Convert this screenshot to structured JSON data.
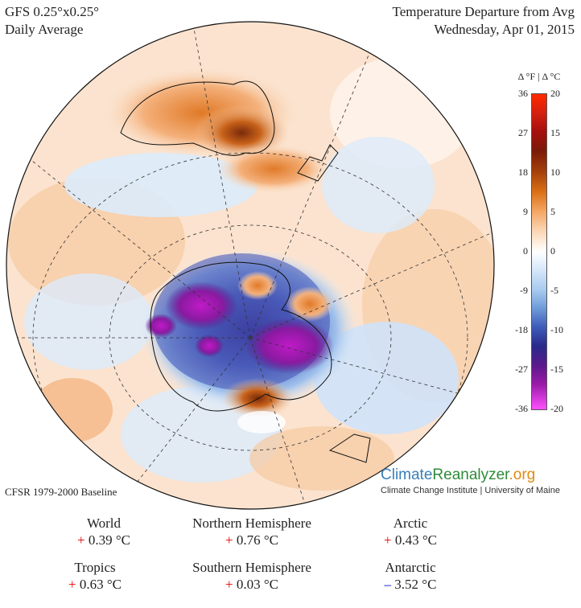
{
  "header": {
    "model": "GFS 0.25°x0.25°",
    "period": "Daily Average",
    "title": "Temperature Departure from Avg",
    "date": "Wednesday, Apr 01, 2015"
  },
  "scale": {
    "units_label": "Δ °F  |  Δ °C",
    "fahrenheit_ticks": [
      "36",
      "27",
      "18",
      "9",
      "0",
      "-9",
      "-18",
      "-27",
      "-36"
    ],
    "celsius_ticks": [
      "20",
      "15",
      "10",
      "5",
      "0",
      "-5",
      "-10",
      "-15",
      "-20"
    ],
    "warm_color": "#ff2a00",
    "cold_color": "#ff50ff"
  },
  "baseline": "CFSR 1979-2000 Baseline",
  "brand": {
    "climate": "Climate",
    "reanalyzer": "Reanalyzer",
    "org": ".org",
    "subtitle": "Climate Change Institute | University of Maine"
  },
  "stats": [
    {
      "label": "World",
      "sign": "+",
      "value": "0.39 °C"
    },
    {
      "label": "Northern Hemisphere",
      "sign": "+",
      "value": "0.76 °C"
    },
    {
      "label": "Arctic",
      "sign": "+",
      "value": "0.43 °C"
    },
    {
      "label": "Tropics",
      "sign": "+",
      "value": "0.63 °C"
    },
    {
      "label": "Southern Hemisphere",
      "sign": "+",
      "value": "0.03 °C"
    },
    {
      "label": "Antarctic",
      "sign": "–",
      "value": "3.52 °C"
    }
  ]
}
